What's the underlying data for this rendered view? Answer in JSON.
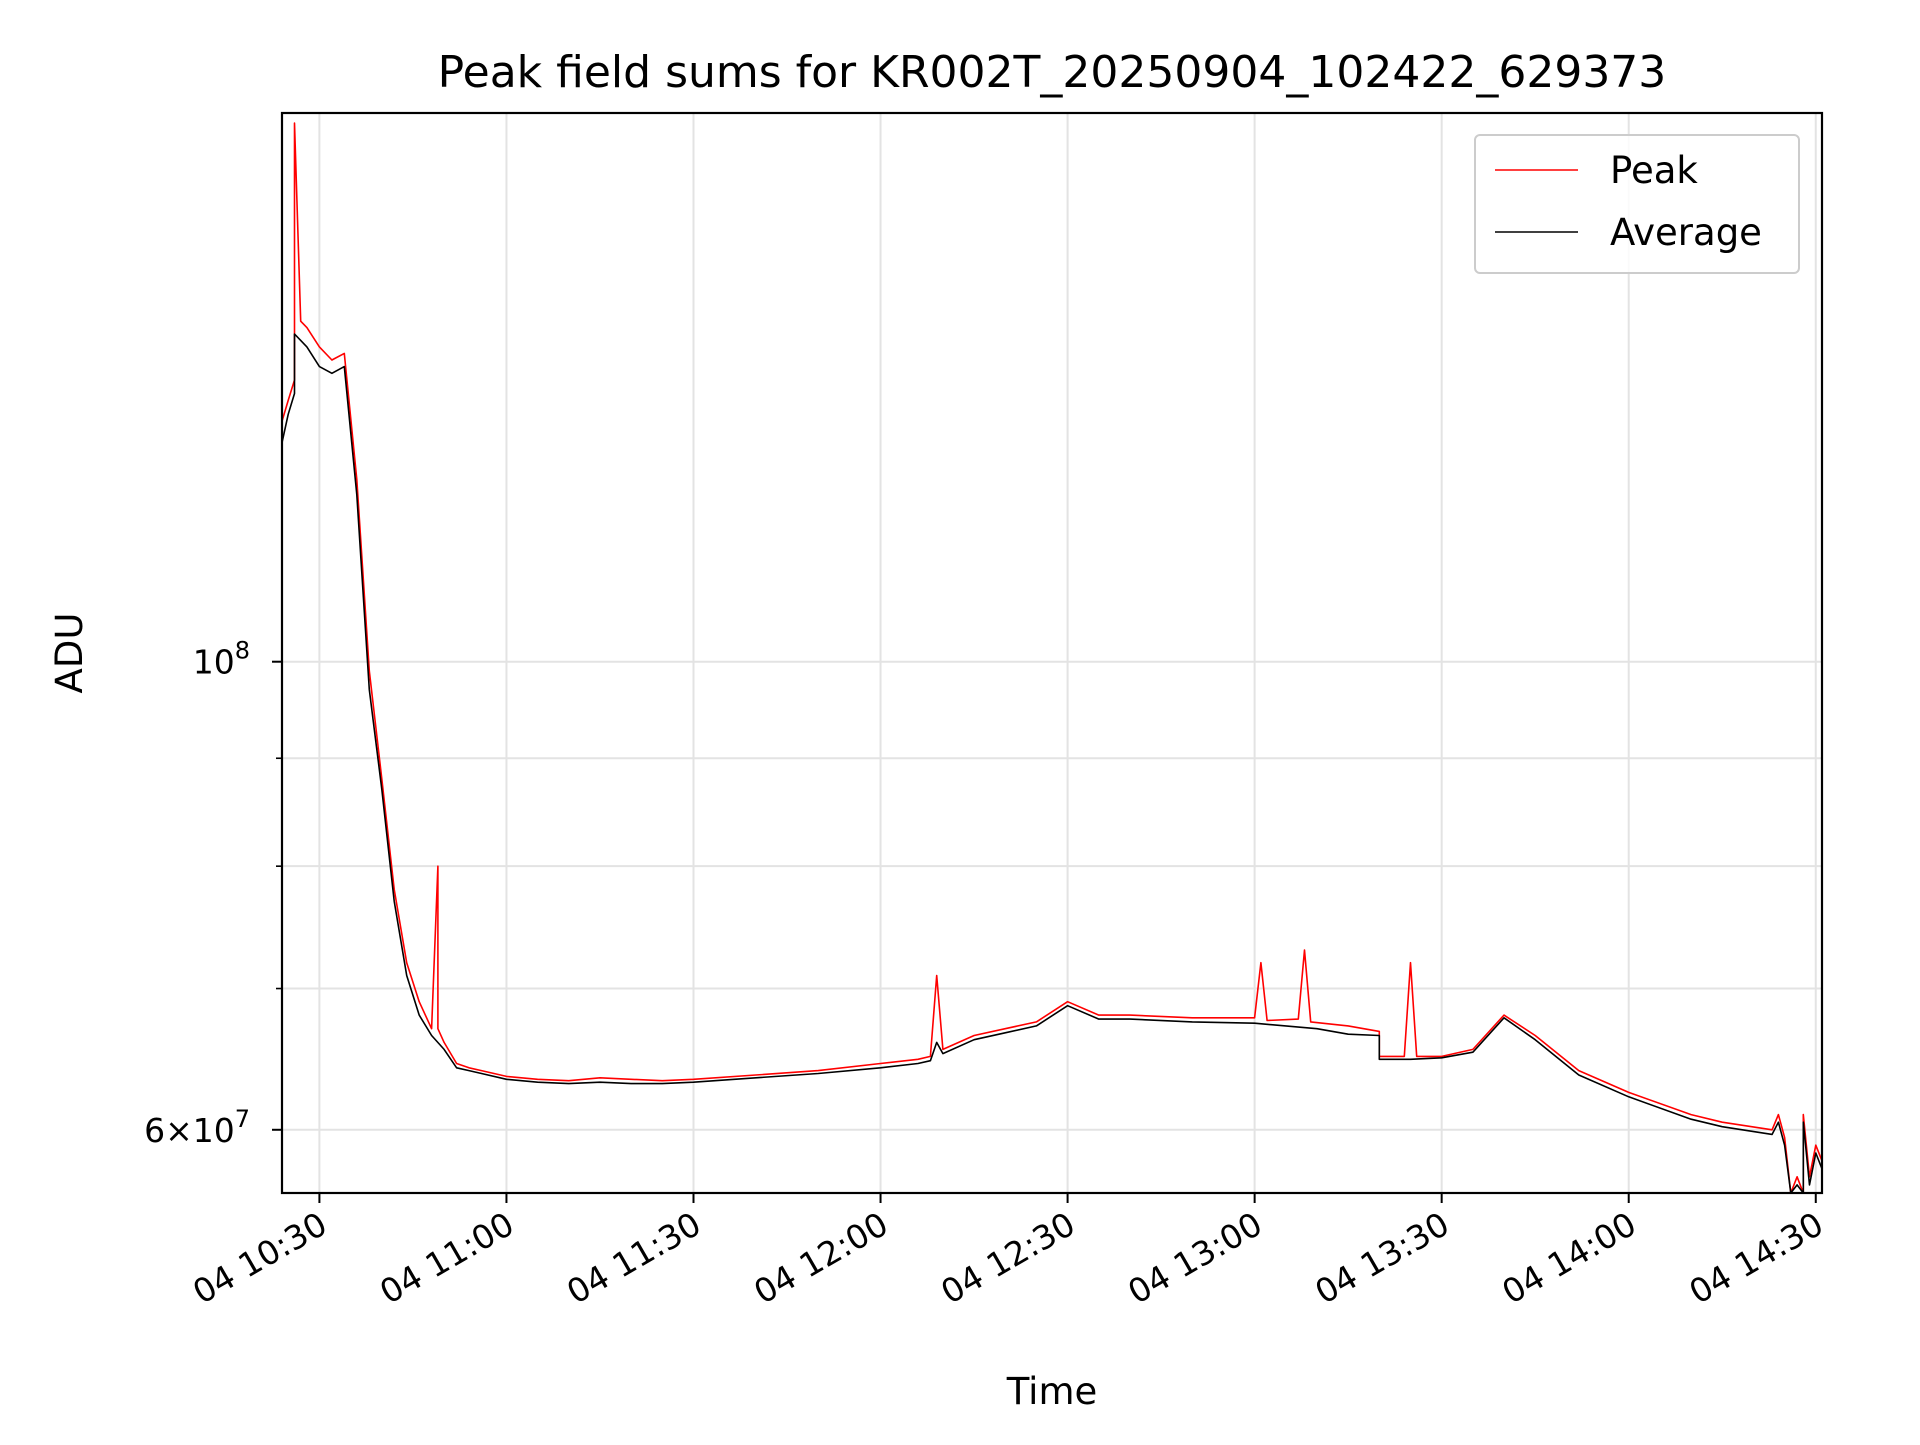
{
  "chart_data": {
    "type": "line",
    "title": "Peak field sums for KR002T_20250904_102422_629373",
    "xlabel": "Time",
    "ylabel": "ADU",
    "y_scale": "log",
    "grid": true,
    "legend_position": "top-right",
    "xlim": [
      "2025-09-04 10:24",
      "2025-09-04 14:31"
    ],
    "ylim": [
      56000000,
      182000000
    ],
    "x_ticks": [
      {
        "value": "2025-09-04 10:30",
        "label": "04 10:30"
      },
      {
        "value": "2025-09-04 11:00",
        "label": "04 11:00"
      },
      {
        "value": "2025-09-04 11:30",
        "label": "04 11:30"
      },
      {
        "value": "2025-09-04 12:00",
        "label": "04 12:00"
      },
      {
        "value": "2025-09-04 12:30",
        "label": "04 12:30"
      },
      {
        "value": "2025-09-04 13:00",
        "label": "04 13:00"
      },
      {
        "value": "2025-09-04 13:30",
        "label": "04 13:30"
      },
      {
        "value": "2025-09-04 14:00",
        "label": "04 14:00"
      },
      {
        "value": "2025-09-04 14:30",
        "label": "04 14:30"
      }
    ],
    "y_ticks": [
      {
        "value": 100000000,
        "label_base": "10",
        "label_exp": "8"
      },
      {
        "value": 60000000,
        "label_base": "6×10",
        "label_exp": "7"
      }
    ],
    "y_minor_ticks": [
      70000000,
      80000000,
      90000000
    ],
    "series": [
      {
        "name": "Peak",
        "color": "#ff0000",
        "x": [
          "2025-09-04 10:24",
          "2025-09-04 10:25",
          "2025-09-04 10:26",
          "2025-09-04 10:26",
          "2025-09-04 10:27",
          "2025-09-04 10:28",
          "2025-09-04 10:30",
          "2025-09-04 10:32",
          "2025-09-04 10:34",
          "2025-09-04 10:36",
          "2025-09-04 10:38",
          "2025-09-04 10:40",
          "2025-09-04 10:42",
          "2025-09-04 10:44",
          "2025-09-04 10:46",
          "2025-09-04 10:48",
          "2025-09-04 10:49",
          "2025-09-04 10:49",
          "2025-09-04 10:50",
          "2025-09-04 10:52",
          "2025-09-04 10:54",
          "2025-09-04 10:56",
          "2025-09-04 11:00",
          "2025-09-04 11:05",
          "2025-09-04 11:10",
          "2025-09-04 11:15",
          "2025-09-04 11:20",
          "2025-09-04 11:25",
          "2025-09-04 11:30",
          "2025-09-04 11:40",
          "2025-09-04 11:50",
          "2025-09-04 12:00",
          "2025-09-04 12:06",
          "2025-09-04 12:08",
          "2025-09-04 12:09",
          "2025-09-04 12:10",
          "2025-09-04 12:15",
          "2025-09-04 12:20",
          "2025-09-04 12:25",
          "2025-09-04 12:30",
          "2025-09-04 12:35",
          "2025-09-04 12:40",
          "2025-09-04 12:50",
          "2025-09-04 13:00",
          "2025-09-04 13:01",
          "2025-09-04 13:02",
          "2025-09-04 13:07",
          "2025-09-04 13:08",
          "2025-09-04 13:09",
          "2025-09-04 13:15",
          "2025-09-04 13:20",
          "2025-09-04 13:20",
          "2025-09-04 13:24",
          "2025-09-04 13:25",
          "2025-09-04 13:26",
          "2025-09-04 13:30",
          "2025-09-04 13:35",
          "2025-09-04 13:40",
          "2025-09-04 13:45",
          "2025-09-04 13:52",
          "2025-09-04 14:00",
          "2025-09-04 14:10",
          "2025-09-04 14:15",
          "2025-09-04 14:23",
          "2025-09-04 14:24",
          "2025-09-04 14:25",
          "2025-09-04 14:26",
          "2025-09-04 14:27",
          "2025-09-04 14:28",
          "2025-09-04 14:28",
          "2025-09-04 14:29",
          "2025-09-04 14:30",
          "2025-09-04 14:31"
        ],
        "values": [
          130000000,
          133000000,
          136000000,
          180000000,
          145000000,
          144000000,
          141000000,
          139000000,
          140000000,
          122000000,
          99000000,
          88000000,
          78000000,
          72000000,
          69000000,
          67000000,
          80000000,
          67000000,
          66000000,
          64500000,
          64200000,
          64000000,
          63600000,
          63400000,
          63300000,
          63500000,
          63400000,
          63300000,
          63400000,
          63700000,
          64000000,
          64500000,
          64800000,
          65000000,
          71000000,
          65500000,
          66500000,
          67000000,
          67500000,
          69000000,
          68000000,
          68000000,
          67800000,
          67800000,
          72000000,
          67600000,
          67700000,
          73000000,
          67500000,
          67200000,
          66800000,
          65000000,
          65000000,
          72000000,
          65000000,
          65000000,
          65500000,
          68000000,
          66500000,
          64000000,
          62500000,
          61000000,
          60500000,
          60000000,
          61000000,
          59500000,
          54000000,
          57000000,
          55000000,
          61000000,
          57000000,
          59000000,
          58000000
        ]
      },
      {
        "name": "Average",
        "color": "#000000",
        "x": [
          "2025-09-04 10:24",
          "2025-09-04 10:25",
          "2025-09-04 10:26",
          "2025-09-04 10:26",
          "2025-09-04 10:27",
          "2025-09-04 10:28",
          "2025-09-04 10:30",
          "2025-09-04 10:32",
          "2025-09-04 10:34",
          "2025-09-04 10:36",
          "2025-09-04 10:38",
          "2025-09-04 10:40",
          "2025-09-04 10:42",
          "2025-09-04 10:44",
          "2025-09-04 10:46",
          "2025-09-04 10:48",
          "2025-09-04 10:50",
          "2025-09-04 10:52",
          "2025-09-04 10:54",
          "2025-09-04 10:56",
          "2025-09-04 11:00",
          "2025-09-04 11:05",
          "2025-09-04 11:10",
          "2025-09-04 11:15",
          "2025-09-04 11:20",
          "2025-09-04 11:25",
          "2025-09-04 11:30",
          "2025-09-04 11:40",
          "2025-09-04 11:50",
          "2025-09-04 12:00",
          "2025-09-04 12:06",
          "2025-09-04 12:08",
          "2025-09-04 12:09",
          "2025-09-04 12:10",
          "2025-09-04 12:15",
          "2025-09-04 12:20",
          "2025-09-04 12:25",
          "2025-09-04 12:30",
          "2025-09-04 12:35",
          "2025-09-04 12:40",
          "2025-09-04 12:50",
          "2025-09-04 13:00",
          "2025-09-04 13:10",
          "2025-09-04 13:15",
          "2025-09-04 13:20",
          "2025-09-04 13:20",
          "2025-09-04 13:25",
          "2025-09-04 13:30",
          "2025-09-04 13:35",
          "2025-09-04 13:40",
          "2025-09-04 13:45",
          "2025-09-04 13:52",
          "2025-09-04 14:00",
          "2025-09-04 14:10",
          "2025-09-04 14:15",
          "2025-09-04 14:23",
          "2025-09-04 14:24",
          "2025-09-04 14:25",
          "2025-09-04 14:26",
          "2025-09-04 14:27",
          "2025-09-04 14:28",
          "2025-09-04 14:28",
          "2025-09-04 14:29",
          "2025-09-04 14:30",
          "2025-09-04 14:31"
        ],
        "values": [
          127000000,
          131000000,
          134000000,
          143000000,
          142000000,
          141000000,
          138000000,
          137000000,
          138000000,
          120000000,
          97000000,
          87000000,
          77000000,
          71000000,
          68000000,
          66500000,
          65500000,
          64200000,
          64000000,
          63800000,
          63400000,
          63200000,
          63100000,
          63200000,
          63100000,
          63100000,
          63200000,
          63500000,
          63800000,
          64200000,
          64500000,
          64700000,
          66000000,
          65200000,
          66200000,
          66700000,
          67200000,
          68700000,
          67700000,
          67700000,
          67500000,
          67400000,
          67000000,
          66600000,
          66500000,
          64800000,
          64800000,
          64900000,
          65300000,
          67800000,
          66200000,
          63700000,
          62200000,
          60700000,
          60200000,
          59700000,
          60500000,
          59000000,
          54000000,
          56500000,
          55000000,
          60500000,
          56500000,
          58500000,
          57500000
        ]
      }
    ]
  }
}
